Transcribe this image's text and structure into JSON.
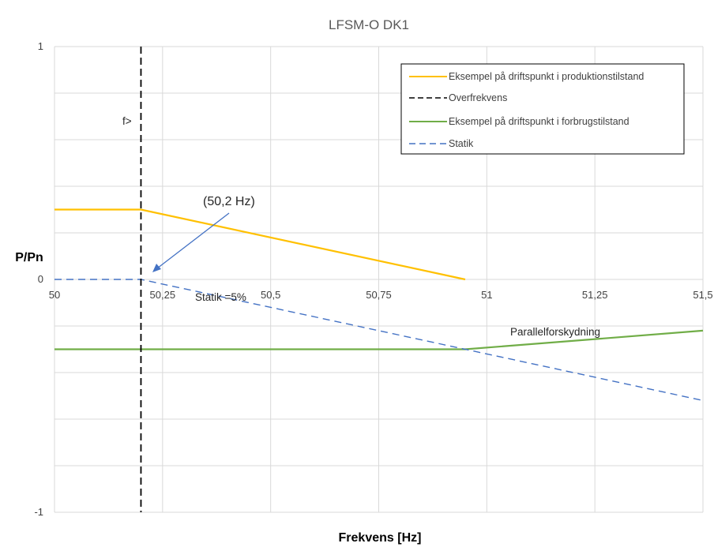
{
  "chart_data": {
    "type": "line",
    "title": "LFSM-O DK1",
    "xlabel": "Frekvens [Hz]",
    "ylabel": "P/Pn",
    "xlim": [
      50,
      51.5
    ],
    "ylim": [
      -1,
      1
    ],
    "x_ticks": [
      "50",
      "50,25",
      "50,5",
      "50,75",
      "51",
      "51,25",
      "51,5"
    ],
    "y_ticks": [
      "1",
      "0",
      "-1"
    ],
    "grid": true,
    "legend_position": "top-right",
    "series": [
      {
        "name": "Eksempel på driftspunkt i produktionstilstand",
        "color": "#FFC000",
        "style": "solid",
        "x": [
          50,
          50.2,
          50.95
        ],
        "y": [
          0.3,
          0.3,
          0
        ]
      },
      {
        "name": "Overfrekvens",
        "color": "#000000",
        "style": "dashed",
        "x": [
          50.2,
          50.2
        ],
        "y": [
          1,
          -1
        ]
      },
      {
        "name": "Eksempel på driftspunkt i forbrugstilstand",
        "color": "#70AD47",
        "style": "solid",
        "x": [
          50,
          50.95,
          51.5
        ],
        "y": [
          -0.3,
          -0.3,
          -0.22
        ]
      },
      {
        "name": "Statik",
        "color": "#4472C4",
        "style": "dashed",
        "x": [
          50,
          50.2,
          51.5
        ],
        "y": [
          0,
          0,
          -0.52
        ]
      }
    ],
    "annotations": {
      "f_label": "f>",
      "freq_label": "(50,2 Hz)",
      "statik_label": "Statik =5%",
      "shift_label": "Parallelforskydning"
    }
  }
}
